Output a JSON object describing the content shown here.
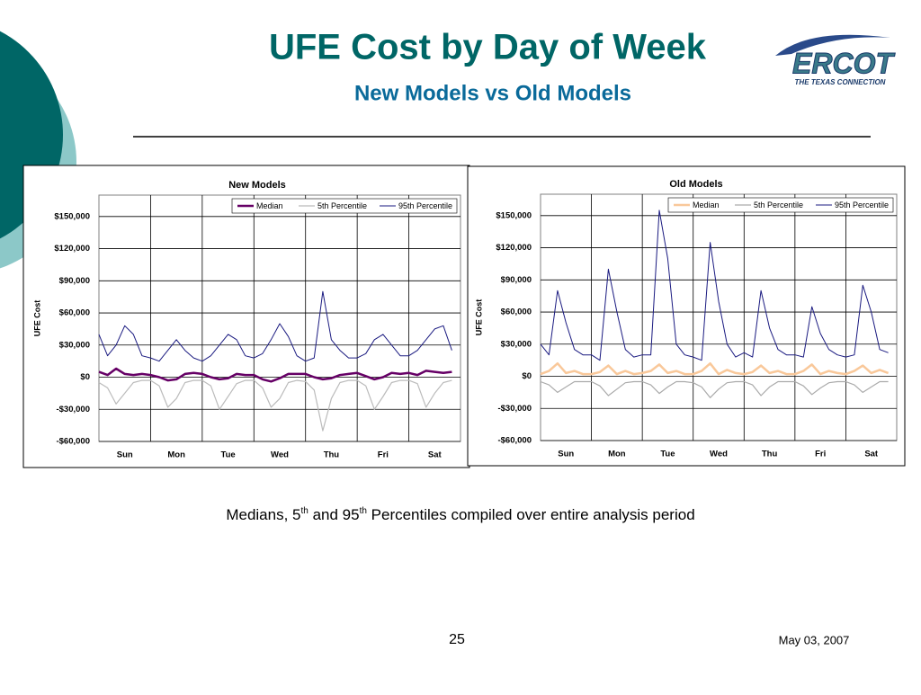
{
  "slide": {
    "title": "UFE Cost by Day of Week",
    "subtitle": "New Models vs Old Models",
    "logo": {
      "name": "ERCOT",
      "tagline": "THE TEXAS CONNECTION"
    },
    "caption": [
      "Medians, 5",
      "th",
      " and 95",
      "th",
      " Percentiles compiled over entire analysis period"
    ],
    "page_number": "25",
    "date": "May 03, 2007"
  },
  "chart_data": [
    {
      "type": "line",
      "title": "New Models",
      "y_label": "UFE Cost",
      "x": [
        0,
        4,
        8,
        12,
        16,
        20,
        24,
        28,
        32,
        36,
        40,
        44,
        48,
        52,
        56,
        60,
        64,
        68,
        72,
        76,
        80,
        84,
        88,
        92,
        96,
        100,
        104,
        108,
        112,
        116,
        120,
        124,
        128,
        132,
        136,
        140,
        144,
        148,
        152,
        156,
        160,
        164
      ],
      "xlim": [
        0,
        168
      ],
      "xticks": [
        {
          "value": 12,
          "label": "Sun"
        },
        {
          "value": 36,
          "label": "Mon"
        },
        {
          "value": 60,
          "label": "Tue"
        },
        {
          "value": 84,
          "label": "Wed"
        },
        {
          "value": 108,
          "label": "Thu"
        },
        {
          "value": 132,
          "label": "Fri"
        },
        {
          "value": 156,
          "label": "Sat"
        }
      ],
      "ylim": [
        -60000,
        170000
      ],
      "yticks": [
        {
          "value": -60000,
          "label": "-$60,000"
        },
        {
          "value": -30000,
          "label": "-$30,000"
        },
        {
          "value": 0,
          "label": "$0"
        },
        {
          "value": 30000,
          "label": "$30,000"
        },
        {
          "value": 60000,
          "label": "$60,000"
        },
        {
          "value": 90000,
          "label": "$90,000"
        },
        {
          "value": 120000,
          "label": "$120,000"
        },
        {
          "value": 150000,
          "label": "$150,000"
        }
      ],
      "grid": true,
      "legend": "top-right",
      "series": [
        {
          "name": "Median",
          "color": "#660066",
          "width": 2.5,
          "values": [
            5000,
            2000,
            8000,
            3000,
            2000,
            3000,
            2000,
            0,
            -3000,
            -2000,
            3000,
            4000,
            3000,
            0,
            -2000,
            -1000,
            3000,
            2000,
            2000,
            -2000,
            -4000,
            -1000,
            3000,
            3000,
            3000,
            0,
            -2000,
            -1000,
            2000,
            3000,
            4000,
            1000,
            -2000,
            0,
            4000,
            3000,
            4000,
            2000,
            6000,
            5000,
            4000,
            5000
          ]
        },
        {
          "name": "5th Percentile",
          "color": "#bbbbbb",
          "width": 1.2,
          "values": [
            -5000,
            -10000,
            -25000,
            -15000,
            -5000,
            -3000,
            -3000,
            -8000,
            -28000,
            -20000,
            -5000,
            -3000,
            -3000,
            -8000,
            -30000,
            -18000,
            -6000,
            -3000,
            -3000,
            -10000,
            -28000,
            -20000,
            -5000,
            -3000,
            -4000,
            -12000,
            -50000,
            -20000,
            -5000,
            -3000,
            -3000,
            -8000,
            -30000,
            -18000,
            -5000,
            -3000,
            -3000,
            -6000,
            -28000,
            -15000,
            -5000,
            -3000
          ]
        },
        {
          "name": "95th Percentile",
          "color": "#1a1a80",
          "width": 1,
          "values": [
            40000,
            20000,
            30000,
            48000,
            40000,
            20000,
            18000,
            15000,
            25000,
            35000,
            25000,
            18000,
            15000,
            20000,
            30000,
            40000,
            35000,
            20000,
            18000,
            22000,
            35000,
            50000,
            38000,
            20000,
            15000,
            18000,
            80000,
            35000,
            25000,
            18000,
            18000,
            22000,
            35000,
            40000,
            30000,
            20000,
            20000,
            25000,
            35000,
            45000,
            48000,
            25000
          ]
        }
      ]
    },
    {
      "type": "line",
      "title": "Old Models",
      "y_label": "UFE Cost",
      "x": [
        0,
        4,
        8,
        12,
        16,
        20,
        24,
        28,
        32,
        36,
        40,
        44,
        48,
        52,
        56,
        60,
        64,
        68,
        72,
        76,
        80,
        84,
        88,
        92,
        96,
        100,
        104,
        108,
        112,
        116,
        120,
        124,
        128,
        132,
        136,
        140,
        144,
        148,
        152,
        156,
        160,
        164
      ],
      "xlim": [
        0,
        168
      ],
      "xticks": [
        {
          "value": 12,
          "label": "Sun"
        },
        {
          "value": 36,
          "label": "Mon"
        },
        {
          "value": 60,
          "label": "Tue"
        },
        {
          "value": 84,
          "label": "Wed"
        },
        {
          "value": 108,
          "label": "Thu"
        },
        {
          "value": 132,
          "label": "Fri"
        },
        {
          "value": 156,
          "label": "Sat"
        }
      ],
      "ylim": [
        -60000,
        170000
      ],
      "yticks": [
        {
          "value": -60000,
          "label": "-$60,000"
        },
        {
          "value": -30000,
          "label": "-$30,000"
        },
        {
          "value": 0,
          "label": "$0"
        },
        {
          "value": 30000,
          "label": "$30,000"
        },
        {
          "value": 60000,
          "label": "$60,000"
        },
        {
          "value": 90000,
          "label": "$90,000"
        },
        {
          "value": 120000,
          "label": "$120,000"
        },
        {
          "value": 150000,
          "label": "$150,000"
        }
      ],
      "grid": true,
      "legend": "top-right",
      "series": [
        {
          "name": "Median",
          "color": "#f9c89a",
          "width": 2.5,
          "values": [
            2000,
            5000,
            12000,
            3000,
            5000,
            2000,
            2000,
            4000,
            10000,
            2000,
            5000,
            2000,
            3000,
            5000,
            11000,
            3000,
            5000,
            2000,
            2000,
            5000,
            12000,
            2000,
            6000,
            3000,
            2000,
            4000,
            10000,
            3000,
            5000,
            2000,
            2000,
            5000,
            11000,
            2000,
            5000,
            3000,
            2000,
            5000,
            10000,
            3000,
            6000,
            3000
          ]
        },
        {
          "name": "5th Percentile",
          "color": "#aaaaaa",
          "width": 1.2,
          "values": [
            -5000,
            -8000,
            -15000,
            -10000,
            -5000,
            -5000,
            -5000,
            -9000,
            -18000,
            -12000,
            -6000,
            -5000,
            -5000,
            -8000,
            -16000,
            -10000,
            -5000,
            -5000,
            -6000,
            -10000,
            -20000,
            -12000,
            -6000,
            -5000,
            -5000,
            -8000,
            -18000,
            -10000,
            -5000,
            -5000,
            -5000,
            -9000,
            -17000,
            -11000,
            -6000,
            -5000,
            -5000,
            -8000,
            -15000,
            -10000,
            -5000,
            -5000
          ]
        },
        {
          "name": "95th Percentile",
          "color": "#1a1a80",
          "width": 1,
          "values": [
            30000,
            20000,
            80000,
            50000,
            25000,
            20000,
            20000,
            15000,
            100000,
            60000,
            25000,
            18000,
            20000,
            20000,
            155000,
            110000,
            30000,
            20000,
            18000,
            15000,
            125000,
            70000,
            30000,
            18000,
            22000,
            18000,
            80000,
            45000,
            25000,
            20000,
            20000,
            18000,
            65000,
            40000,
            25000,
            20000,
            18000,
            20000,
            85000,
            60000,
            25000,
            22000
          ]
        }
      ]
    }
  ]
}
